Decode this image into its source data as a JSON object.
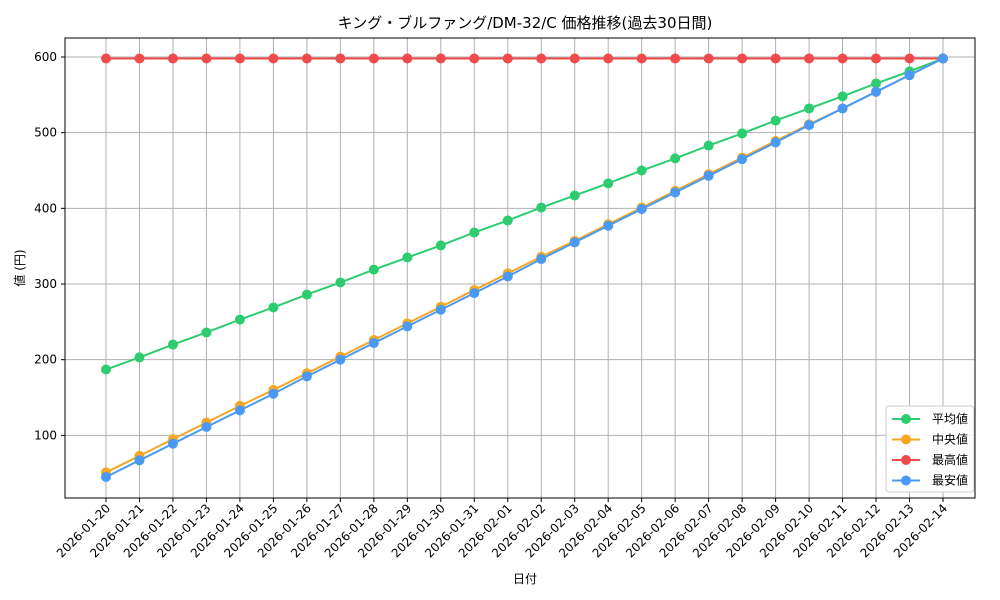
{
  "chart_data": {
    "type": "line",
    "title": "キング・ブルファング/DM-32/C 価格推移(過去30日間)",
    "xlabel": "日付",
    "ylabel": "値 (円)",
    "ylim": [
      15,
      625
    ],
    "yticks": [
      100,
      200,
      300,
      400,
      500,
      600
    ],
    "grid": true,
    "legend_position": "lower right",
    "categories": [
      "2026-01-20",
      "2026-01-21",
      "2026-01-22",
      "2026-01-23",
      "2026-01-24",
      "2026-01-25",
      "2026-01-26",
      "2026-01-27",
      "2026-01-28",
      "2026-01-29",
      "2026-01-30",
      "2026-01-31",
      "2026-02-01",
      "2026-02-02",
      "2026-02-03",
      "2026-02-04",
      "2026-02-05",
      "2026-02-06",
      "2026-02-07",
      "2026-02-08",
      "2026-02-09",
      "2026-02-10",
      "2026-02-11",
      "2026-02-12",
      "2026-02-13",
      "2026-02-14"
    ],
    "series": [
      {
        "name": "平均値",
        "color": "#2ecc71",
        "values": [
          187,
          203,
          220,
          236,
          253,
          269,
          286,
          302,
          319,
          335,
          351,
          368,
          384,
          401,
          417,
          433,
          450,
          466,
          483,
          499,
          516,
          532,
          548,
          565,
          581,
          598
        ]
      },
      {
        "name": "中央値",
        "color": "#f5a623",
        "values": [
          51,
          73,
          95,
          117,
          139,
          160,
          182,
          204,
          226,
          248,
          270,
          292,
          314,
          336,
          357,
          379,
          401,
          423,
          445,
          467,
          489,
          511,
          532,
          554,
          576,
          598
        ]
      },
      {
        "name": "最高値",
        "color": "#f04a4a",
        "values": [
          598,
          598,
          598,
          598,
          598,
          598,
          598,
          598,
          598,
          598,
          598,
          598,
          598,
          598,
          598,
          598,
          598,
          598,
          598,
          598,
          598,
          598,
          598,
          598,
          598,
          598
        ]
      },
      {
        "name": "最安値",
        "color": "#4a9af5",
        "values": [
          45,
          67,
          89,
          111,
          133,
          155,
          178,
          200,
          222,
          244,
          266,
          288,
          310,
          333,
          355,
          377,
          399,
          421,
          443,
          465,
          487,
          510,
          532,
          554,
          576,
          598
        ]
      }
    ]
  }
}
